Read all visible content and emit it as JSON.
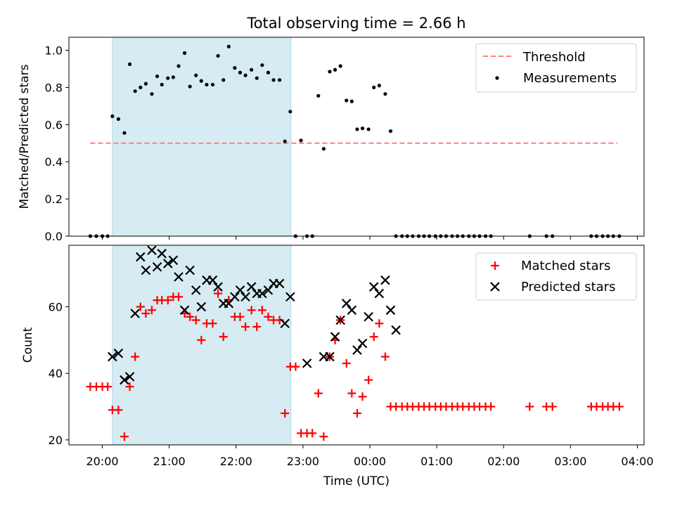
{
  "chart_data": {
    "title": "Total observing time = 2.66 h",
    "xlabel": "Time (UTC)",
    "x_unit": "hours since 20:00 UTC (values >= 4 are after midnight)",
    "xlim": [
      -0.5,
      8.1
    ],
    "x_ticks": [
      {
        "value": 0,
        "label": "20:00"
      },
      {
        "value": 1,
        "label": "21:00"
      },
      {
        "value": 2,
        "label": "22:00"
      },
      {
        "value": 3,
        "label": "23:00"
      },
      {
        "value": 4,
        "label": "00:00"
      },
      {
        "value": 5,
        "label": "01:00"
      },
      {
        "value": 6,
        "label": "02:00"
      },
      {
        "value": 7,
        "label": "03:00"
      },
      {
        "value": 8,
        "label": "04:00"
      }
    ],
    "observing_window": {
      "start": 0.15,
      "end": 2.82,
      "color": "#add8e6"
    },
    "top": {
      "type": "scatter",
      "ylabel": "Matched/Predicted stars",
      "ylim": [
        0,
        1.07
      ],
      "y_ticks": [
        "0.0",
        "0.2",
        "0.4",
        "0.6",
        "0.8",
        "1.0"
      ],
      "legend_position": "top-right",
      "threshold": {
        "name": "Threshold",
        "value": 0.5,
        "x_start": -0.18,
        "x_end": 7.7,
        "color": "#ff7f7f"
      },
      "measurements": {
        "name": "Measurements",
        "color": "#000000",
        "points": [
          [
            -0.18,
            0.0
          ],
          [
            -0.09,
            0.0
          ],
          [
            0.0,
            0.0
          ],
          [
            0.08,
            0.0
          ],
          [
            0.15,
            0.645
          ],
          [
            0.24,
            0.63
          ],
          [
            0.33,
            0.555
          ],
          [
            0.41,
            0.925
          ],
          [
            0.49,
            0.78
          ],
          [
            0.57,
            0.8
          ],
          [
            0.65,
            0.82
          ],
          [
            0.74,
            0.765
          ],
          [
            0.82,
            0.86
          ],
          [
            0.89,
            0.815
          ],
          [
            0.98,
            0.85
          ],
          [
            1.06,
            0.855
          ],
          [
            1.14,
            0.915
          ],
          [
            1.23,
            0.985
          ],
          [
            1.31,
            0.805
          ],
          [
            1.4,
            0.865
          ],
          [
            1.48,
            0.835
          ],
          [
            1.56,
            0.815
          ],
          [
            1.65,
            0.815
          ],
          [
            1.73,
            0.97
          ],
          [
            1.81,
            0.84
          ],
          [
            1.89,
            1.02
          ],
          [
            1.98,
            0.905
          ],
          [
            2.06,
            0.88
          ],
          [
            2.14,
            0.865
          ],
          [
            2.23,
            0.895
          ],
          [
            2.31,
            0.85
          ],
          [
            2.39,
            0.92
          ],
          [
            2.48,
            0.88
          ],
          [
            2.56,
            0.84
          ],
          [
            2.65,
            0.84
          ],
          [
            2.73,
            0.51
          ],
          [
            2.81,
            0.67
          ],
          [
            2.89,
            0.0
          ],
          [
            2.97,
            0.515
          ],
          [
            3.06,
            0.0
          ],
          [
            3.14,
            0.0
          ],
          [
            3.23,
            0.755
          ],
          [
            3.31,
            0.47
          ],
          [
            3.4,
            0.885
          ],
          [
            3.48,
            0.895
          ],
          [
            3.56,
            0.915
          ],
          [
            3.65,
            0.73
          ],
          [
            3.73,
            0.725
          ],
          [
            3.81,
            0.575
          ],
          [
            3.89,
            0.58
          ],
          [
            3.98,
            0.575
          ],
          [
            4.06,
            0.8
          ],
          [
            4.14,
            0.81
          ],
          [
            4.23,
            0.765
          ],
          [
            4.31,
            0.565
          ],
          [
            4.39,
            0.0
          ],
          [
            4.48,
            0.0
          ],
          [
            4.56,
            0.0
          ],
          [
            4.64,
            0.0
          ],
          [
            4.73,
            0.0
          ],
          [
            4.81,
            0.0
          ],
          [
            4.89,
            0.0
          ],
          [
            4.98,
            0.0
          ],
          [
            5.06,
            0.0
          ],
          [
            5.14,
            0.0
          ],
          [
            5.23,
            0.0
          ],
          [
            5.31,
            0.0
          ],
          [
            5.39,
            0.0
          ],
          [
            5.48,
            0.0
          ],
          [
            5.56,
            0.0
          ],
          [
            5.64,
            0.0
          ],
          [
            5.73,
            0.0
          ],
          [
            5.81,
            0.0
          ],
          [
            6.39,
            0.0
          ],
          [
            6.64,
            0.0
          ],
          [
            6.73,
            0.0
          ],
          [
            7.31,
            0.0
          ],
          [
            7.39,
            0.0
          ],
          [
            7.48,
            0.0
          ],
          [
            7.56,
            0.0
          ],
          [
            7.64,
            0.0
          ],
          [
            7.73,
            0.0
          ]
        ]
      }
    },
    "bottom": {
      "type": "scatter",
      "ylabel": "Count",
      "ylim": [
        18.5,
        78.5
      ],
      "y_ticks": [
        "20",
        "40",
        "60"
      ],
      "legend_position": "top-right",
      "matched": {
        "name": "Matched stars",
        "color": "#ff0000",
        "marker": "plus",
        "points": [
          [
            -0.18,
            36
          ],
          [
            -0.09,
            36
          ],
          [
            0.0,
            36
          ],
          [
            0.08,
            36
          ],
          [
            0.15,
            29
          ],
          [
            0.24,
            29
          ],
          [
            0.33,
            21
          ],
          [
            0.41,
            36
          ],
          [
            0.49,
            45
          ],
          [
            0.57,
            60
          ],
          [
            0.65,
            58
          ],
          [
            0.74,
            59
          ],
          [
            0.82,
            62
          ],
          [
            0.89,
            62
          ],
          [
            0.98,
            62
          ],
          [
            1.06,
            63
          ],
          [
            1.14,
            63
          ],
          [
            1.23,
            58
          ],
          [
            1.31,
            57
          ],
          [
            1.4,
            56
          ],
          [
            1.48,
            50
          ],
          [
            1.56,
            55
          ],
          [
            1.65,
            55
          ],
          [
            1.73,
            64
          ],
          [
            1.81,
            51
          ],
          [
            1.89,
            62
          ],
          [
            1.98,
            57
          ],
          [
            2.06,
            57
          ],
          [
            2.14,
            54
          ],
          [
            2.23,
            59
          ],
          [
            2.31,
            54
          ],
          [
            2.39,
            59
          ],
          [
            2.48,
            57
          ],
          [
            2.56,
            56
          ],
          [
            2.65,
            56
          ],
          [
            2.73,
            28
          ],
          [
            2.81,
            42
          ],
          [
            2.89,
            42
          ],
          [
            2.97,
            22
          ],
          [
            3.06,
            22
          ],
          [
            3.14,
            22
          ],
          [
            3.23,
            34
          ],
          [
            3.31,
            21
          ],
          [
            3.4,
            45
          ],
          [
            3.48,
            50
          ],
          [
            3.56,
            56
          ],
          [
            3.65,
            43
          ],
          [
            3.73,
            34
          ],
          [
            3.81,
            28
          ],
          [
            3.89,
            33
          ],
          [
            3.98,
            38
          ],
          [
            4.06,
            51
          ],
          [
            4.14,
            55
          ],
          [
            4.23,
            45
          ],
          [
            4.31,
            30
          ],
          [
            4.39,
            30
          ],
          [
            4.48,
            30
          ],
          [
            4.56,
            30
          ],
          [
            4.64,
            30
          ],
          [
            4.73,
            30
          ],
          [
            4.81,
            30
          ],
          [
            4.89,
            30
          ],
          [
            4.98,
            30
          ],
          [
            5.06,
            30
          ],
          [
            5.14,
            30
          ],
          [
            5.23,
            30
          ],
          [
            5.31,
            30
          ],
          [
            5.39,
            30
          ],
          [
            5.48,
            30
          ],
          [
            5.56,
            30
          ],
          [
            5.64,
            30
          ],
          [
            5.73,
            30
          ],
          [
            5.81,
            30
          ],
          [
            6.39,
            30
          ],
          [
            6.64,
            30
          ],
          [
            6.73,
            30
          ],
          [
            7.31,
            30
          ],
          [
            7.39,
            30
          ],
          [
            7.48,
            30
          ],
          [
            7.56,
            30
          ],
          [
            7.64,
            30
          ],
          [
            7.73,
            30
          ]
        ]
      },
      "predicted": {
        "name": "Predicted stars",
        "color": "#000000",
        "marker": "cross",
        "points": [
          [
            0.15,
            45
          ],
          [
            0.24,
            46
          ],
          [
            0.33,
            38
          ],
          [
            0.41,
            39
          ],
          [
            0.49,
            58
          ],
          [
            0.57,
            75
          ],
          [
            0.65,
            71
          ],
          [
            0.74,
            77
          ],
          [
            0.82,
            72
          ],
          [
            0.89,
            76
          ],
          [
            0.98,
            73
          ],
          [
            1.06,
            74
          ],
          [
            1.14,
            69
          ],
          [
            1.23,
            59
          ],
          [
            1.31,
            71
          ],
          [
            1.4,
            65
          ],
          [
            1.48,
            60
          ],
          [
            1.56,
            68
          ],
          [
            1.65,
            68
          ],
          [
            1.73,
            66
          ],
          [
            1.81,
            61
          ],
          [
            1.89,
            61
          ],
          [
            1.98,
            63
          ],
          [
            2.06,
            65
          ],
          [
            2.14,
            63
          ],
          [
            2.23,
            66
          ],
          [
            2.31,
            64
          ],
          [
            2.39,
            64
          ],
          [
            2.48,
            65
          ],
          [
            2.56,
            67
          ],
          [
            2.65,
            67
          ],
          [
            2.73,
            55
          ],
          [
            2.81,
            63
          ],
          [
            3.06,
            43
          ],
          [
            3.31,
            45
          ],
          [
            3.4,
            45
          ],
          [
            3.48,
            51
          ],
          [
            3.56,
            56
          ],
          [
            3.65,
            61
          ],
          [
            3.73,
            59
          ],
          [
            3.81,
            47
          ],
          [
            3.89,
            49
          ],
          [
            3.98,
            57
          ],
          [
            4.06,
            66
          ],
          [
            4.14,
            64
          ],
          [
            4.23,
            68
          ],
          [
            4.31,
            59
          ],
          [
            4.39,
            53
          ]
        ]
      }
    }
  }
}
